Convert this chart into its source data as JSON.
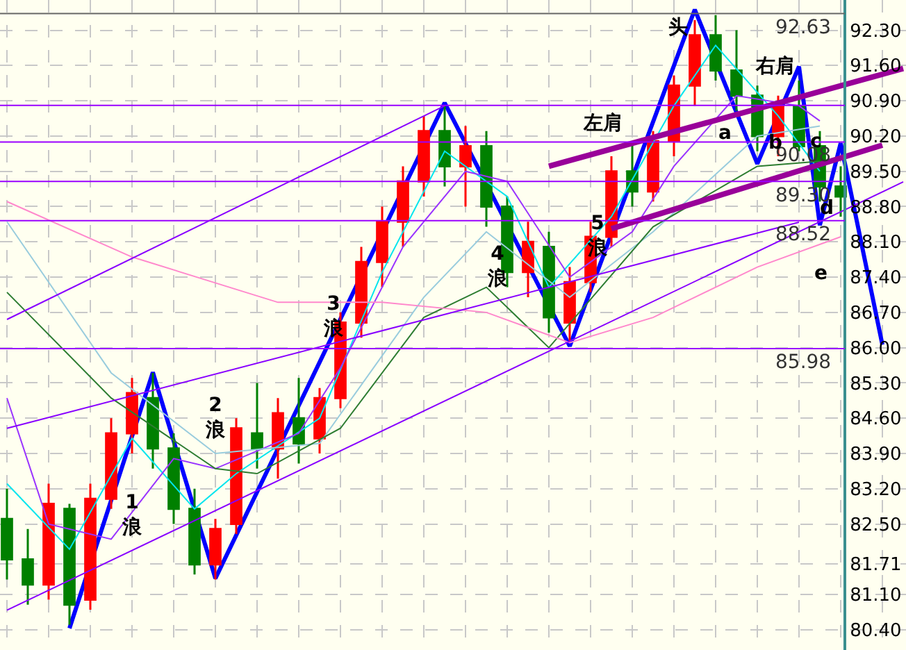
{
  "chart_data": {
    "type": "candlestick",
    "categories": [
      null,
      null,
      null,
      null,
      null,
      null,
      null,
      null,
      null,
      null,
      null,
      null,
      null,
      null,
      null,
      null,
      null,
      null,
      null,
      null,
      null,
      null,
      null,
      null,
      null,
      null,
      null,
      null,
      null,
      null,
      null,
      null,
      null,
      null,
      null,
      null,
      null,
      null,
      null,
      null,
      null,
      null,
      null,
      null
    ],
    "ohlc": [
      [
        82.6,
        83.2,
        81.4,
        81.8
      ],
      [
        81.8,
        82.4,
        80.9,
        81.3
      ],
      [
        81.3,
        83.3,
        81.0,
        82.9
      ],
      [
        82.8,
        82.9,
        80.5,
        80.9
      ],
      [
        81.0,
        83.3,
        80.8,
        83.0
      ],
      [
        83.0,
        84.6,
        82.8,
        84.3
      ],
      [
        84.3,
        85.4,
        83.9,
        85.1
      ],
      [
        85.0,
        85.5,
        83.6,
        84.0
      ],
      [
        84.0,
        84.3,
        82.5,
        82.8
      ],
      [
        82.8,
        83.2,
        81.5,
        81.7
      ],
      [
        81.7,
        82.6,
        81.4,
        82.4
      ],
      [
        82.5,
        84.6,
        82.3,
        84.4
      ],
      [
        84.3,
        85.3,
        83.6,
        84.0
      ],
      [
        84.0,
        85.0,
        83.4,
        84.7
      ],
      [
        84.6,
        85.4,
        83.7,
        84.1
      ],
      [
        84.2,
        85.2,
        83.9,
        85.0
      ],
      [
        85.0,
        86.7,
        84.8,
        86.5
      ],
      [
        86.5,
        88.0,
        86.2,
        87.7
      ],
      [
        87.7,
        88.8,
        87.2,
        88.5
      ],
      [
        88.5,
        89.6,
        88.0,
        89.3
      ],
      [
        89.3,
        90.6,
        89.0,
        90.3
      ],
      [
        90.3,
        90.8,
        89.2,
        89.6
      ],
      [
        89.6,
        90.4,
        88.8,
        90.0
      ],
      [
        90.0,
        90.3,
        88.4,
        88.8
      ],
      [
        88.8,
        89.0,
        87.2,
        87.5
      ],
      [
        87.5,
        88.5,
        87.0,
        88.1
      ],
      [
        88.0,
        88.3,
        86.3,
        86.6
      ],
      [
        86.5,
        87.6,
        86.1,
        87.3
      ],
      [
        87.3,
        88.5,
        87.1,
        88.2
      ],
      [
        88.2,
        89.8,
        88.0,
        89.5
      ],
      [
        89.5,
        90.1,
        88.8,
        89.1
      ],
      [
        89.1,
        90.3,
        88.9,
        90.1
      ],
      [
        90.1,
        91.4,
        89.8,
        91.2
      ],
      [
        91.2,
        92.5,
        90.8,
        92.2
      ],
      [
        92.2,
        92.6,
        91.3,
        91.5
      ],
      [
        91.5,
        92.3,
        90.7,
        91.0
      ],
      [
        91.0,
        91.2,
        89.9,
        90.2
      ],
      [
        90.2,
        91.0,
        89.8,
        90.8
      ],
      [
        90.8,
        91.3,
        89.9,
        90.0
      ],
      [
        90.0,
        90.3,
        88.9,
        89.2
      ],
      [
        89.2,
        89.6,
        88.6,
        89.0
      ],
      null,
      null,
      null
    ],
    "colors": [
      "#008000",
      "#008000",
      "#ff0000",
      "#008000",
      "#ff0000",
      "#ff0000",
      "#ff0000",
      "#008000",
      "#008000",
      "#008000",
      "#ff0000",
      "#ff0000",
      "#008000",
      "#ff0000",
      "#008000",
      "#ff0000",
      "#ff0000",
      "#ff0000",
      "#ff0000",
      "#ff0000",
      "#ff0000",
      "#008000",
      "#ff0000",
      "#008000",
      "#008000",
      "#ff0000",
      "#008000",
      "#ff0000",
      "#ff0000",
      "#ff0000",
      "#008000",
      "#ff0000",
      "#ff0000",
      "#ff0000",
      "#008000",
      "#008000",
      "#008000",
      "#ff0000",
      "#008000",
      "#008000",
      "#008000",
      null,
      null,
      null
    ],
    "series": [
      {
        "type": "line",
        "color": "#00e5ee",
        "values": [
          83.3,
          null,
          null,
          82.0,
          null,
          null,
          84.2,
          null,
          null,
          82.8,
          null,
          83.5,
          null,
          null,
          null,
          84.6,
          null,
          null,
          87.5,
          null,
          null,
          89.9,
          null,
          null,
          89.0,
          null,
          87.2,
          null,
          null,
          88.6,
          null,
          null,
          90.8,
          null,
          92.0,
          null,
          null,
          90.6,
          null,
          89.5,
          null,
          null,
          null,
          null
        ]
      },
      {
        "type": "line",
        "color": "#9933ff",
        "values": [
          85.0,
          null,
          82.5,
          null,
          null,
          82.2,
          null,
          null,
          83.8,
          null,
          83.6,
          null,
          null,
          null,
          84.3,
          null,
          85.6,
          null,
          null,
          88.0,
          null,
          null,
          89.5,
          null,
          89.3,
          null,
          null,
          87.4,
          null,
          null,
          88.3,
          null,
          89.6,
          null,
          null,
          91.0,
          null,
          null,
          90.8,
          90.5,
          null,
          null,
          null,
          null
        ]
      },
      {
        "type": "line",
        "color": "#99ccdd",
        "values": [
          88.5,
          null,
          null,
          null,
          null,
          85.5,
          null,
          null,
          null,
          null,
          83.9,
          null,
          null,
          null,
          null,
          84.1,
          null,
          null,
          null,
          null,
          87.0,
          null,
          null,
          88.3,
          null,
          null,
          null,
          87.0,
          null,
          null,
          null,
          88.3,
          null,
          null,
          null,
          null,
          90.2,
          null,
          null,
          90.4,
          null,
          null,
          null,
          null
        ]
      },
      {
        "type": "line",
        "color": "#2e7d32",
        "values": [
          87.1,
          null,
          null,
          null,
          null,
          85.0,
          null,
          null,
          null,
          null,
          83.6,
          null,
          83.5,
          null,
          null,
          null,
          84.4,
          null,
          null,
          null,
          86.6,
          null,
          null,
          87.2,
          null,
          null,
          86.0,
          null,
          null,
          null,
          null,
          88.4,
          null,
          null,
          null,
          null,
          89.6,
          null,
          null,
          89.7,
          null,
          null,
          null,
          null
        ]
      },
      {
        "type": "line",
        "color": "#ff88cc",
        "values": [
          88.9,
          null,
          null,
          null,
          null,
          null,
          87.8,
          null,
          null,
          null,
          null,
          null,
          null,
          86.9,
          null,
          null,
          null,
          null,
          86.9,
          null,
          null,
          null,
          null,
          86.7,
          null,
          null,
          null,
          86.1,
          null,
          null,
          null,
          86.6,
          null,
          null,
          null,
          null,
          87.6,
          null,
          null,
          null,
          88.2,
          null,
          null,
          null
        ]
      },
      {
        "type": "line",
        "color": "#8800ff",
        "values": [
          80.79,
          null,
          null,
          null,
          null,
          null,
          null,
          null,
          null,
          null,
          null,
          null,
          null,
          null,
          null,
          null,
          null,
          null,
          null,
          null,
          null,
          null,
          null,
          null,
          null,
          null,
          null,
          null,
          null,
          null,
          null,
          null,
          null,
          null,
          null,
          null,
          null,
          null,
          null,
          null,
          null,
          null,
          null,
          89.29
        ]
      },
      {
        "type": "line",
        "color": "#8800ff",
        "values": [
          84.4,
          null,
          null,
          null,
          null,
          null,
          null,
          null,
          null,
          null,
          null,
          null,
          null,
          null,
          null,
          null,
          null,
          null,
          null,
          null,
          null,
          null,
          null,
          null,
          null,
          null,
          null,
          null,
          null,
          null,
          null,
          null,
          null,
          null,
          null,
          null,
          null,
          null,
          88.49,
          null,
          null,
          null,
          null,
          null
        ]
      },
      {
        "type": "line",
        "color": "#8800ff",
        "values": [
          86.56,
          null,
          null,
          null,
          null,
          null,
          null,
          null,
          null,
          null,
          null,
          null,
          null,
          null,
          null,
          null,
          null,
          null,
          null,
          null,
          null,
          90.8,
          null,
          null,
          null,
          null,
          null,
          null,
          null,
          null,
          null,
          null,
          null,
          null,
          null,
          null,
          null,
          null,
          null,
          null,
          null,
          null,
          null,
          null
        ]
      },
      {
        "type": "line",
        "color": "#990099",
        "values": [
          null,
          null,
          null,
          null,
          null,
          null,
          null,
          null,
          null,
          null,
          null,
          null,
          null,
          null,
          null,
          null,
          null,
          null,
          null,
          null,
          null,
          null,
          null,
          null,
          null,
          null,
          89.6,
          null,
          null,
          null,
          null,
          null,
          null,
          null,
          null,
          null,
          null,
          null,
          null,
          null,
          null,
          null,
          null,
          91.54
        ]
      },
      {
        "type": "line",
        "color": "#990099",
        "values": [
          null,
          null,
          null,
          null,
          null,
          null,
          null,
          null,
          null,
          null,
          null,
          null,
          null,
          null,
          null,
          null,
          null,
          null,
          null,
          null,
          null,
          null,
          null,
          null,
          null,
          null,
          null,
          null,
          null,
          88.36,
          null,
          null,
          null,
          null,
          null,
          null,
          null,
          null,
          null,
          null,
          null,
          null,
          90.02,
          null
        ]
      },
      {
        "type": "line",
        "color": "#0000ff",
        "values": [
          null,
          null,
          null,
          80.43,
          null,
          null,
          null,
          85.51,
          null,
          null,
          81.42,
          null,
          null,
          null,
          null,
          null,
          null,
          null,
          null,
          null,
          null,
          90.86,
          null,
          null,
          null,
          null,
          null,
          86.03,
          null,
          null,
          null,
          null,
          null,
          92.71,
          null,
          null,
          89.65,
          null,
          91.58,
          88.43,
          90.06,
          null,
          86.06,
          null
        ]
      }
    ],
    "ref_lines": [
      {
        "axis": "y",
        "value": 92.63,
        "label": "92.63",
        "color": "#666666"
      },
      {
        "axis": "y",
        "value": 90.81,
        "label": null,
        "color": "#9900ff"
      },
      {
        "axis": "y",
        "value": 90.08,
        "label": "90.08",
        "color": "#9900ff"
      },
      {
        "axis": "y",
        "value": 89.3,
        "label": "89.30",
        "color": "#9900ff"
      },
      {
        "axis": "y",
        "value": 88.52,
        "label": "88.52",
        "color": "#9900ff"
      },
      {
        "axis": "y",
        "value": 85.98,
        "label": "85.98",
        "color": "#9900ff"
      }
    ],
    "annotations": [
      "1\n浪",
      "2\n浪",
      "3\n浪",
      "4\n浪",
      "5\n浪",
      "左肩",
      "头",
      "右肩",
      "a",
      "b",
      "c",
      "d",
      "e"
    ],
    "ylim": [
      80.0,
      92.9
    ],
    "yticks": [
      {
        "value": 80.4,
        "label": "80.40"
      },
      {
        "value": 81.1,
        "label": "81.10"
      },
      {
        "value": 81.71,
        "label": "81.71"
      },
      {
        "value": 82.5,
        "label": "82.50"
      },
      {
        "value": 83.2,
        "label": "83.20"
      },
      {
        "value": 83.9,
        "label": "83.90"
      },
      {
        "value": 84.6,
        "label": "84.60"
      },
      {
        "value": 85.3,
        "label": "85.30"
      },
      {
        "value": 86.0,
        "label": "86.00"
      },
      {
        "value": 86.7,
        "label": "86.70"
      },
      {
        "value": 87.4,
        "label": "87.40"
      },
      {
        "value": 88.1,
        "label": "88.10"
      },
      {
        "value": 88.8,
        "label": "88.80"
      },
      {
        "value": 89.5,
        "label": "89.50"
      },
      {
        "value": 90.2,
        "label": "90.20"
      },
      {
        "value": 90.9,
        "label": "90.90"
      },
      {
        "value": 91.6,
        "label": "91.60"
      },
      {
        "value": 92.3,
        "label": "92.30"
      }
    ],
    "tick_labels": "y",
    "grid": true,
    "marker": "none",
    "line_style": "solid"
  }
}
